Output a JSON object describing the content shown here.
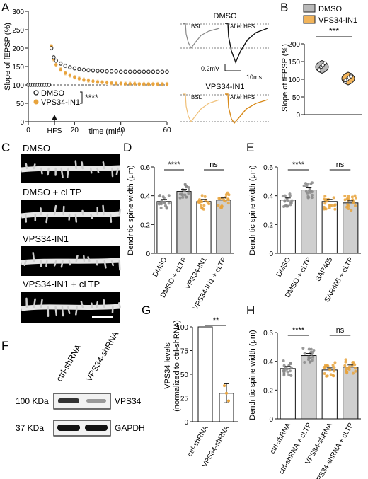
{
  "panel_labels": [
    "A",
    "B",
    "C",
    "D",
    "E",
    "F",
    "G",
    "H"
  ],
  "colors": {
    "dmso": "#222222",
    "drug": "#e8a33c",
    "bar_fill_ctrl": "#ffffff",
    "bar_fill_ltp": "#cfcfcf",
    "black": "#111111"
  },
  "panel_A": {
    "ylabel": "Slope of fEPSP (%)",
    "xlabel": "time (min)",
    "hfs_label": "HFS",
    "legend": [
      "DMSO",
      "VPS34-IN1"
    ],
    "stars": "****",
    "traces": {
      "dmso_title": "DMSO",
      "drug_title": "VPS34-IN1",
      "bsl": "BSL",
      "after_hfs": "After HFS",
      "scale_v": "0.2mV",
      "scale_t": "10ms"
    }
  },
  "panel_B": {
    "ylabel": "Slope of fEPSP (%)",
    "legend": [
      "DMSO",
      "VPS34-IN1"
    ],
    "stars": "***"
  },
  "panel_C": {
    "labels": [
      "DMSO",
      "DMSO + cLTP",
      "VPS34-IN1",
      "VPS34-IN1 + cLTP"
    ]
  },
  "panel_D": {
    "ylabel": "Dendritic spine width (μm)",
    "sig": [
      "****",
      "ns"
    ]
  },
  "panel_E": {
    "ylabel": "Dendritic spine width (μm)",
    "sig": [
      "****",
      "ns"
    ]
  },
  "panel_F": {
    "lanes": [
      "ctrl-shRNA",
      "VPS34-shRNA"
    ],
    "markers": [
      "100 KDa",
      "37 KDa"
    ],
    "bands": [
      "VPS34",
      "GAPDH"
    ]
  },
  "panel_G": {
    "ylabel": "VPS34 levels",
    "ylabel2": "(normalized to ctrl-shRNA)",
    "sig": "**"
  },
  "panel_H": {
    "ylabel": "Dendritic spine width (μm)",
    "sig": [
      "****",
      "ns"
    ]
  },
  "chart_data": [
    {
      "type": "scatter",
      "panel": "A",
      "xlabel": "time (min)",
      "ylabel": "Slope of fEPSP (%)",
      "xlim": [
        0,
        60
      ],
      "ylim": [
        0,
        300
      ],
      "xticks": [
        0,
        20,
        40,
        60
      ],
      "yticks": [
        0,
        50,
        100,
        150,
        200,
        250,
        300
      ],
      "series": [
        {
          "name": "DMSO",
          "x": [
            0,
            1,
            2,
            3,
            4,
            5,
            6,
            7,
            8,
            9,
            10,
            11,
            12,
            14,
            16,
            18,
            20,
            22,
            24,
            26,
            28,
            30,
            32,
            34,
            36,
            38,
            40,
            42,
            44,
            46,
            48,
            50,
            52,
            54,
            56,
            58,
            60
          ],
          "y": [
            100,
            100,
            100,
            100,
            100,
            100,
            100,
            100,
            100,
            100,
            200,
            175,
            166,
            158,
            152,
            148,
            145,
            143,
            141,
            140,
            139,
            138,
            138,
            137,
            137,
            137,
            136,
            136,
            136,
            136,
            136,
            136,
            136,
            136,
            136,
            136,
            136
          ]
        },
        {
          "name": "VPS34-IN1",
          "x": [
            0,
            1,
            2,
            3,
            4,
            5,
            6,
            7,
            8,
            9,
            10,
            11,
            12,
            14,
            16,
            18,
            20,
            22,
            24,
            26,
            28,
            30,
            32,
            34,
            36,
            38,
            40,
            42,
            44,
            46,
            48,
            50,
            52,
            54,
            56,
            58,
            60
          ],
          "y": [
            100,
            100,
            100,
            100,
            100,
            100,
            100,
            100,
            100,
            100,
            205,
            170,
            155,
            142,
            132,
            126,
            121,
            117,
            114,
            112,
            110,
            108,
            107,
            106,
            105,
            104,
            104,
            103,
            103,
            103,
            102,
            102,
            102,
            102,
            102,
            102,
            102
          ]
        }
      ]
    },
    {
      "type": "violin",
      "panel": "B",
      "ylabel": "Slope of fEPSP (%)",
      "ylim": [
        0,
        200
      ],
      "yticks": [
        0,
        50,
        100,
        150,
        200
      ],
      "categories": [
        "DMSO",
        "VPS34-IN1"
      ],
      "series": [
        {
          "name": "DMSO",
          "values": [
            135,
            145,
            128,
            140,
            125
          ]
        },
        {
          "name": "VPS34-IN1",
          "values": [
            100,
            112,
            92,
            105,
            97,
            108
          ]
        }
      ]
    },
    {
      "type": "bar",
      "panel": "D",
      "ylabel": "Dendritic spine width (μm)",
      "ylim": [
        0,
        0.6
      ],
      "yticks": [
        0,
        0.2,
        0.4,
        0.6
      ],
      "categories": [
        "DMSO",
        "DMSO + cLTP",
        "VPS34-IN1",
        "VPS34-IN1 + cLTP"
      ],
      "values": [
        0.36,
        0.43,
        0.36,
        0.37
      ]
    },
    {
      "type": "bar",
      "panel": "E",
      "ylabel": "Dendritic spine width (μm)",
      "ylim": [
        0,
        0.6
      ],
      "yticks": [
        0,
        0.2,
        0.4,
        0.6
      ],
      "categories": [
        "DMSO",
        "DMSO + cLTP",
        "SAR405",
        "SAR405 + cLTP"
      ],
      "values": [
        0.37,
        0.44,
        0.36,
        0.35
      ]
    },
    {
      "type": "bar",
      "panel": "G",
      "ylabel": "VPS34 levels (normalized to ctrl-shRNA)",
      "ylim": [
        0,
        100
      ],
      "yticks": [
        0,
        25,
        50,
        75,
        100
      ],
      "categories": [
        "ctrl-shRNA",
        "VPS34-shRNA"
      ],
      "values": [
        100,
        30
      ]
    },
    {
      "type": "bar",
      "panel": "H",
      "ylabel": "Dendritic spine width (μm)",
      "ylim": [
        0,
        0.6
      ],
      "yticks": [
        0,
        0.2,
        0.4,
        0.6
      ],
      "categories": [
        "ctrl-shRNA",
        "ctrl-shRNA + cLTP",
        "VPS34-shRNA",
        "VPS34-shRNA + cLTP"
      ],
      "values": [
        0.35,
        0.44,
        0.34,
        0.36
      ]
    }
  ]
}
